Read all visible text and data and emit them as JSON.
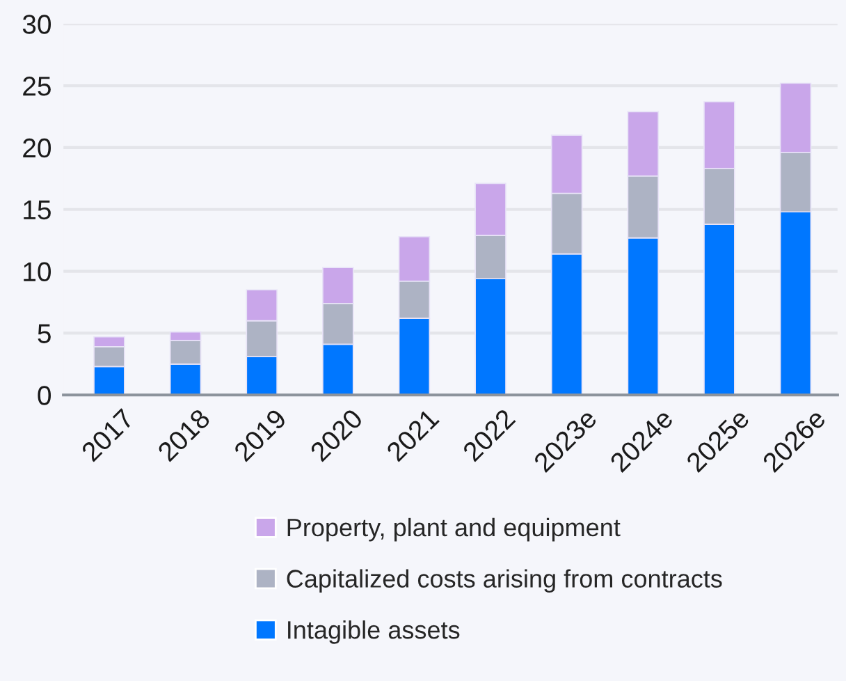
{
  "chart_data": {
    "type": "bar",
    "stacked": true,
    "categories": [
      "2017",
      "2018",
      "2019",
      "2020",
      "2021",
      "2022",
      "2023e",
      "2024e",
      "2025e",
      "2026e"
    ],
    "series": [
      {
        "name": "Intagible assets",
        "color": "#0077ff",
        "values": [
          2.3,
          2.5,
          3.1,
          4.1,
          6.2,
          9.4,
          11.4,
          12.7,
          13.8,
          14.8
        ]
      },
      {
        "name": "Capitalized costs arising from contracts",
        "color": "#adb3c4",
        "values": [
          1.6,
          1.9,
          2.9,
          3.3,
          3.0,
          3.5,
          4.9,
          5.0,
          4.5,
          4.8
        ]
      },
      {
        "name": "Property, plant and equipment",
        "color": "#c9a6ea",
        "values": [
          0.8,
          0.7,
          2.5,
          2.9,
          3.6,
          4.2,
          4.7,
          5.2,
          5.4,
          5.6
        ]
      }
    ],
    "ylim": [
      0,
      30
    ],
    "yticks": [
      0,
      5,
      10,
      15,
      20,
      25,
      30
    ],
    "grid": "y",
    "legend": "bottom"
  }
}
